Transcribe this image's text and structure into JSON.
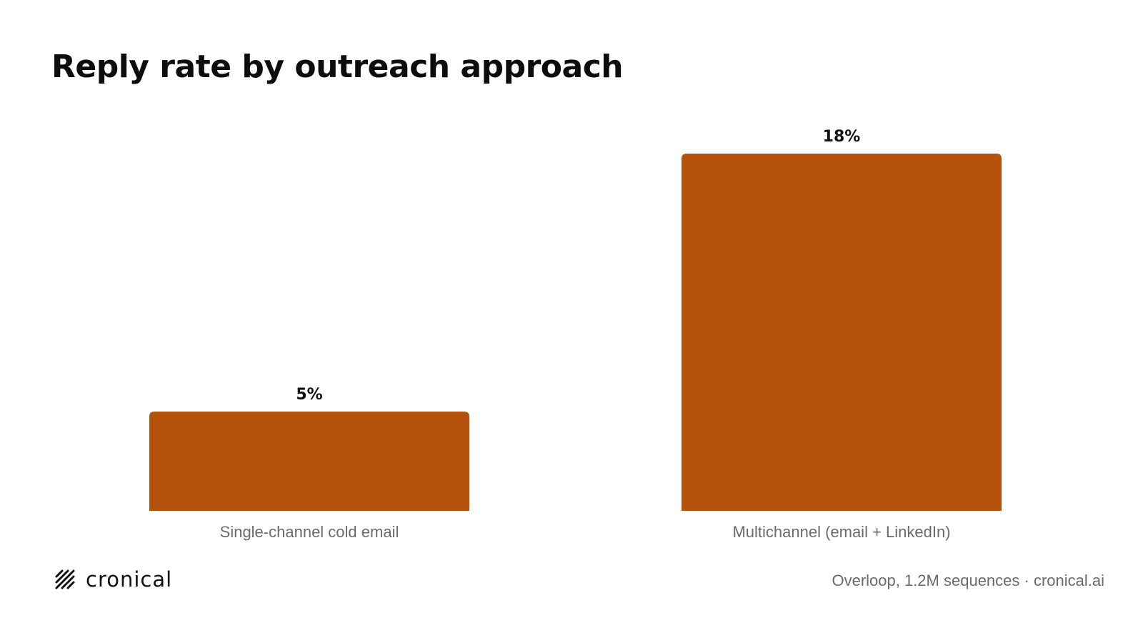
{
  "chart_data": {
    "type": "bar",
    "title": "Reply rate by outreach approach",
    "categories": [
      "Single-channel cold email",
      "Multichannel (email + LinkedIn)"
    ],
    "values": [
      5,
      18
    ],
    "value_labels": [
      "5%",
      "18%"
    ],
    "unit": "%",
    "xlabel": "",
    "ylabel": "",
    "ylim": [
      0,
      18
    ],
    "grid": false,
    "legend": "none",
    "bar_color": "#b5530c"
  },
  "brand": {
    "name": "cronical",
    "icon": "cronical-logo-icon"
  },
  "footer": {
    "source": "Overloop, 1.2M sequences · cronical.ai"
  }
}
